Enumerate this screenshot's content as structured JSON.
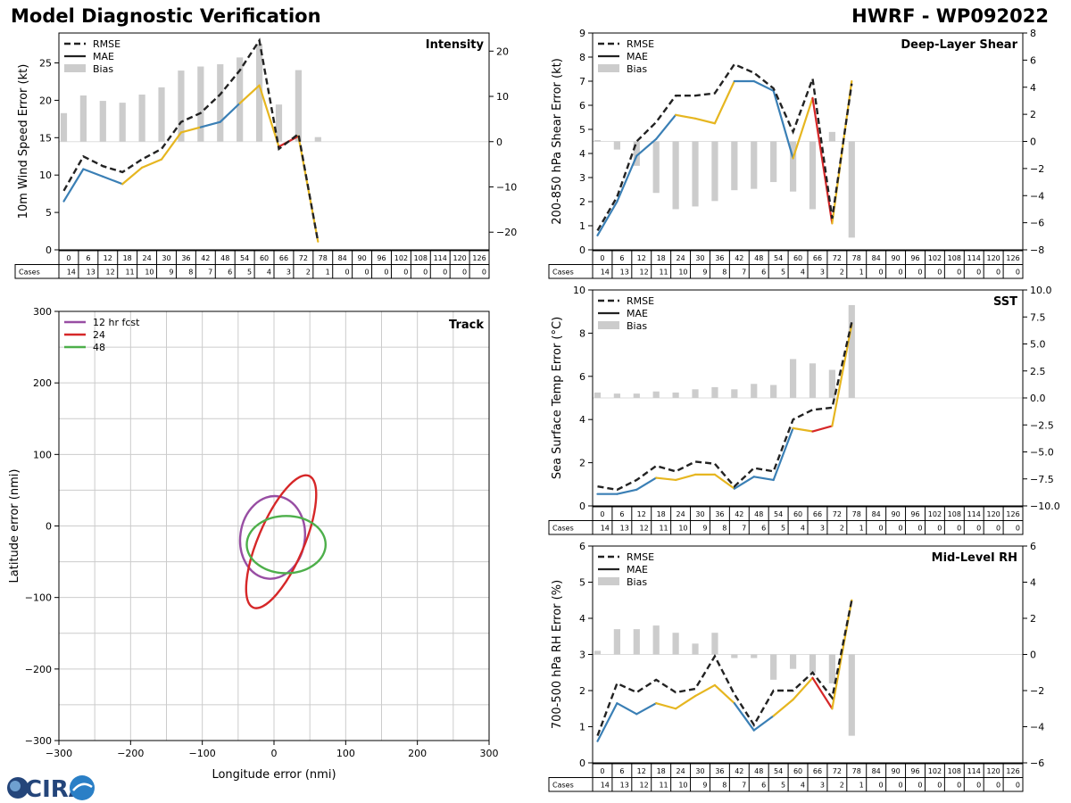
{
  "header": {
    "title_left": "Model Diagnostic Verification",
    "title_right": "HWRF - WP092022"
  },
  "logo": {
    "text": "CIRA"
  },
  "colors": {
    "blue": "#3a7fb5",
    "yellow": "#e6b620",
    "red": "#d62728",
    "rmse": "#222222",
    "bias": "#cccccc",
    "track_12": "#984ea3",
    "track_24": "#d62728",
    "track_48": "#4daf4a",
    "grid": "#cccccc"
  },
  "legend": {
    "rmse": "RMSE",
    "mae": "MAE",
    "bias": "Bias"
  },
  "table": {
    "hours": [
      "0",
      "6",
      "12",
      "18",
      "24",
      "30",
      "36",
      "42",
      "48",
      "54",
      "60",
      "66",
      "72",
      "78",
      "84",
      "90",
      "96",
      "102",
      "108",
      "114",
      "120",
      "126"
    ],
    "cases_label": "Cases",
    "cases": [
      14,
      13,
      12,
      11,
      10,
      9,
      8,
      7,
      6,
      5,
      4,
      3,
      2,
      1,
      0,
      0,
      0,
      0,
      0,
      0,
      0,
      0
    ]
  },
  "chart_data": [
    {
      "id": "intensity",
      "type": "line",
      "title": "Intensity",
      "ylabel": "10m Wind Speed Error (kt)",
      "ylim": [
        0,
        29
      ],
      "yticks": [
        "0",
        "5",
        "10",
        "15",
        "20",
        "25"
      ],
      "y2lim": [
        -23.9,
        24
      ],
      "y2ticks": [
        "−20",
        "−10",
        "0",
        "10",
        "20"
      ],
      "hours": [
        0,
        6,
        12,
        18,
        24,
        30,
        36,
        42,
        48,
        54,
        60,
        66,
        72,
        78
      ],
      "rmse": [
        7.9,
        12.5,
        11.2,
        10.4,
        12.1,
        13.5,
        17.1,
        18.3,
        20.8,
        24.0,
        28.0,
        13.5,
        15.5,
        1.1
      ],
      "mae": [
        6.5,
        10.8,
        9.8,
        8.8,
        11.0,
        12.1,
        15.7,
        16.4,
        17.1,
        19.6,
        22.0,
        13.8,
        15.2,
        1.1
      ],
      "mae_colors": [
        "blue",
        "blue",
        "blue",
        "yellow",
        "yellow",
        "yellow",
        "yellow",
        "blue",
        "blue",
        "yellow",
        "yellow",
        "red",
        "yellow",
        "yellow"
      ],
      "bias": [
        6.3,
        10.2,
        9.0,
        8.6,
        10.4,
        12.0,
        15.7,
        16.6,
        17.1,
        18.6,
        21.6,
        8.2,
        15.8,
        1.0
      ]
    },
    {
      "id": "shear",
      "type": "line",
      "title": "Deep-Layer Shear",
      "ylabel": "200-850 hPa Shear Error (kt)",
      "ylim": [
        0,
        9
      ],
      "yticks": [
        "0",
        "1",
        "2",
        "3",
        "4",
        "5",
        "6",
        "7",
        "8",
        "9"
      ],
      "y2lim": [
        -8,
        8
      ],
      "y2ticks": [
        "−8",
        "−6",
        "−4",
        "−2",
        "0",
        "2",
        "4",
        "6",
        "8"
      ],
      "hours": [
        0,
        6,
        12,
        18,
        24,
        30,
        36,
        42,
        48,
        54,
        60,
        66,
        72,
        78
      ],
      "rmse": [
        0.8,
        2.2,
        4.5,
        5.3,
        6.4,
        6.4,
        6.5,
        7.7,
        7.35,
        6.7,
        4.9,
        7.1,
        1.3,
        6.9
      ],
      "mae": [
        0.6,
        2.0,
        3.9,
        4.6,
        5.6,
        5.45,
        5.25,
        7.0,
        7.0,
        6.6,
        3.8,
        6.3,
        1.1,
        7.0
      ],
      "mae_colors": [
        "blue",
        "blue",
        "blue",
        "blue",
        "yellow",
        "yellow",
        "yellow",
        "blue",
        "blue",
        "blue",
        "yellow",
        "red",
        "yellow",
        "yellow"
      ],
      "bias": [
        0.1,
        -0.6,
        -1.8,
        -3.8,
        -5.0,
        -4.8,
        -4.4,
        -3.6,
        -3.5,
        -3.0,
        -3.7,
        -5.0,
        0.7,
        -7.1
      ]
    },
    {
      "id": "sst",
      "type": "line",
      "title": "SST",
      "ylabel": "Sea Surface Temp Error (°C)",
      "ylim": [
        0,
        10
      ],
      "yticks": [
        "0",
        "2",
        "4",
        "6",
        "8",
        "10"
      ],
      "y2lim": [
        -10,
        10
      ],
      "y2ticks": [
        "−10.0",
        "−7.5",
        "−5.0",
        "−2.5",
        "0.0",
        "2.5",
        "5.0",
        "7.5",
        "10.0"
      ],
      "hours": [
        0,
        6,
        12,
        18,
        24,
        30,
        36,
        42,
        48,
        54,
        60,
        66,
        72,
        78
      ],
      "rmse": [
        0.9,
        0.75,
        1.2,
        1.85,
        1.6,
        2.05,
        1.95,
        0.9,
        1.75,
        1.6,
        4.0,
        4.45,
        4.55,
        8.5
      ],
      "mae": [
        0.55,
        0.55,
        0.75,
        1.3,
        1.2,
        1.45,
        1.45,
        0.8,
        1.35,
        1.2,
        3.6,
        3.45,
        3.7,
        8.4
      ],
      "mae_colors": [
        "blue",
        "blue",
        "blue",
        "yellow",
        "yellow",
        "yellow",
        "yellow",
        "blue",
        "blue",
        "blue",
        "yellow",
        "red",
        "yellow",
        "yellow"
      ],
      "bias": [
        0.5,
        0.4,
        0.4,
        0.6,
        0.5,
        0.8,
        1.0,
        0.8,
        1.3,
        1.2,
        3.6,
        3.2,
        2.6,
        8.6
      ]
    },
    {
      "id": "rh",
      "type": "line",
      "title": "Mid-Level RH",
      "ylabel": "700-500 hPa RH Error (%)",
      "ylim": [
        0,
        6
      ],
      "yticks": [
        "0",
        "1",
        "2",
        "3",
        "4",
        "5",
        "6"
      ],
      "y2lim": [
        -6,
        6
      ],
      "y2ticks": [
        "−6",
        "−4",
        "−2",
        "0",
        "2",
        "4",
        "6"
      ],
      "hours": [
        0,
        6,
        12,
        18,
        24,
        30,
        36,
        42,
        48,
        54,
        60,
        66,
        72,
        78
      ],
      "rmse": [
        0.75,
        2.2,
        1.95,
        2.3,
        1.95,
        2.05,
        2.95,
        1.9,
        1.05,
        2.0,
        2.0,
        2.5,
        1.8,
        4.5
      ],
      "mae": [
        0.6,
        1.65,
        1.35,
        1.65,
        1.5,
        1.85,
        2.15,
        1.65,
        0.9,
        1.3,
        1.75,
        2.35,
        1.5,
        4.5
      ],
      "mae_colors": [
        "blue",
        "blue",
        "blue",
        "yellow",
        "yellow",
        "yellow",
        "yellow",
        "blue",
        "blue",
        "yellow",
        "yellow",
        "red",
        "yellow",
        "yellow"
      ],
      "bias": [
        0.2,
        1.4,
        1.4,
        1.6,
        1.2,
        0.6,
        1.2,
        -0.2,
        -0.2,
        -1.4,
        -0.8,
        -1.0,
        -1.6,
        -4.5
      ]
    },
    {
      "id": "track",
      "type": "scatter",
      "title": "Track",
      "xlabel": "Longitude error (nmi)",
      "ylabel": "Latitude error (nmi)",
      "xlim": [
        -300,
        300
      ],
      "ylim": [
        -300,
        300
      ],
      "xticks": [
        "−300",
        "−200",
        "−100",
        "0",
        "100",
        "200",
        "300"
      ],
      "yticks": [
        "−300",
        "−200",
        "−100",
        "0",
        "100",
        "200",
        "300"
      ],
      "legend": [
        "12 hr fcst",
        "24",
        "48"
      ],
      "ellipses": [
        {
          "label": "12 hr fcst",
          "color": "track_12",
          "cx": -2,
          "cy": -16,
          "rx": 45,
          "ry": 58,
          "rot": 8
        },
        {
          "label": "24",
          "color": "track_24",
          "cx": 10,
          "cy": -22,
          "rx": 32,
          "ry": 100,
          "rot": 23
        },
        {
          "label": "48",
          "color": "track_48",
          "cx": 17,
          "cy": -26,
          "rx": 55,
          "ry": 40,
          "rot": 0
        }
      ]
    }
  ]
}
